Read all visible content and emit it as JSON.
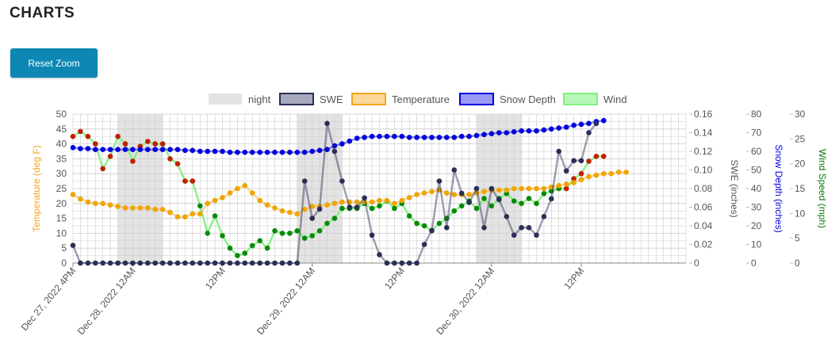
{
  "page": {
    "title": "CHARTS"
  },
  "toolbar": {
    "reset_zoom_label": "Reset Zoom"
  },
  "colors": {
    "night": "#e3e3e3",
    "swe": "#2a2f55",
    "temperature": "#f5a623",
    "temperature_marker": "#f0a500",
    "snow_depth": "#0000dd",
    "wind": "#7ef07e",
    "wind_marker": "#0a8a0a",
    "wind_gust_marker": "#c02000",
    "grid": "#cccccc",
    "axis_text": "#555555"
  },
  "chart_data": {
    "type": "line",
    "legend": {
      "placement": "top-center",
      "items": [
        "night",
        "SWE",
        "Temperature",
        "Snow Depth",
        "Wind"
      ]
    },
    "x_axis": {
      "label": "",
      "range_hours": [
        0,
        82
      ],
      "ticks": [
        {
          "hour": 0,
          "label": "Dec 27, 2022 4PM"
        },
        {
          "hour": 8,
          "label": "Dec 28, 2022 12AM"
        },
        {
          "hour": 20,
          "label": "12PM"
        },
        {
          "hour": 32,
          "label": "Dec 29, 2022 12AM"
        },
        {
          "hour": 44,
          "label": "12PM"
        },
        {
          "hour": 56,
          "label": "Dec 30, 2022 12AM"
        },
        {
          "hour": 68,
          "label": "12PM"
        }
      ]
    },
    "axes": {
      "temperature": {
        "label": "Temperature (deg F)",
        "min": 0,
        "max": 50,
        "ticks": [
          0,
          5,
          10,
          15,
          20,
          25,
          30,
          35,
          40,
          45,
          50
        ]
      },
      "swe": {
        "label": "SWE (inches)",
        "min": 0,
        "max": 0.16,
        "ticks": [
          "0",
          "0.02",
          "0.04",
          "0.06",
          "0.08",
          "0.10",
          "0.12",
          "0.14",
          "0.16"
        ]
      },
      "snow_depth": {
        "label": "Snow Depth (inches)",
        "min": 0,
        "max": 80,
        "ticks": [
          0,
          10,
          20,
          30,
          40,
          50,
          60,
          70,
          80
        ]
      },
      "wind": {
        "label": "Wind Speed (mph)",
        "min": 0,
        "max": 30,
        "ticks": [
          0,
          5,
          10,
          15,
          20,
          25,
          30
        ]
      }
    },
    "night_periods_hours": [
      [
        6,
        12
      ],
      [
        30,
        36
      ],
      [
        54,
        60
      ]
    ],
    "series": [
      {
        "name": "Temperature",
        "axis": "temperature",
        "start_hour": 0,
        "step_hours": 1,
        "values": [
          23,
          21.5,
          20.5,
          20,
          20,
          19.5,
          19,
          18.5,
          18.5,
          18.5,
          18.5,
          18,
          18,
          17,
          15.5,
          15.5,
          16.5,
          16.5,
          20,
          21,
          22,
          23.5,
          25,
          26,
          23.5,
          21,
          19.5,
          18.5,
          17.5,
          17,
          16.5,
          18,
          19,
          19,
          19.5,
          20,
          20.5,
          20.5,
          20.5,
          20.5,
          20.5,
          21,
          21,
          20,
          21,
          22,
          23,
          23.5,
          24,
          24.5,
          23.5,
          23,
          23,
          23,
          23.5,
          24,
          24.5,
          24.5,
          24.5,
          25,
          25,
          25,
          25,
          25,
          25.5,
          26,
          26.5,
          27,
          28,
          29,
          29.5,
          30,
          30,
          30.5,
          30.5
        ]
      },
      {
        "name": "SWE",
        "axis": "swe",
        "start_hour": 0,
        "step_hours": 1,
        "values": [
          0.019,
          0,
          0,
          0,
          0,
          0,
          0,
          0,
          0,
          0,
          0,
          0,
          0,
          0,
          0,
          0,
          0,
          0,
          0,
          0,
          0,
          0,
          0,
          0,
          0,
          0,
          0,
          0,
          0,
          0,
          0,
          0.088,
          0.048,
          0.058,
          0.15,
          0.12,
          0.088,
          0.06,
          0.06,
          0.07,
          0.03,
          0.009,
          0,
          0,
          0,
          0,
          0,
          0.02,
          0.035,
          0.088,
          0.038,
          0.1,
          0.075,
          0.065,
          0.08,
          0.038,
          0.08,
          0.068,
          0.05,
          0.03,
          0.038,
          0.038,
          0.03,
          0.05,
          0.069,
          0.12,
          0.099,
          0.11,
          0.11,
          0.14,
          0.15
        ]
      },
      {
        "name": "Snow Depth",
        "axis": "snow_depth",
        "start_hour": 0,
        "step_hours": 1,
        "values": [
          62,
          61.5,
          61.5,
          61,
          61,
          61,
          61,
          61,
          61,
          61,
          61,
          61,
          61,
          61,
          61,
          60.5,
          60.5,
          60,
          60,
          60,
          60,
          59.5,
          59.5,
          59.5,
          59.5,
          59.5,
          59.5,
          59.5,
          59.5,
          59.5,
          59.5,
          59.5,
          60,
          60.5,
          61,
          63,
          64,
          65.5,
          67,
          67.5,
          68,
          68,
          68,
          68,
          68,
          67.5,
          67.5,
          67.5,
          67.5,
          67.5,
          67.5,
          67.5,
          68,
          68,
          68.5,
          69,
          69.5,
          70,
          70,
          70.5,
          71,
          71,
          71,
          71.5,
          72,
          72.5,
          73,
          74,
          74.5,
          75,
          76,
          76.5
        ]
      },
      {
        "name": "Wind",
        "axis": "wind",
        "start_hour": 0,
        "step_hours": 1,
        "values": [
          25.5,
          26.5,
          25.5,
          24,
          19,
          21.5,
          25.5,
          24,
          20.5,
          23.5,
          24.5,
          24,
          24,
          21,
          20,
          16.5,
          16.5,
          11.5,
          6,
          9.5,
          5.5,
          3,
          1.5,
          2,
          3.5,
          4.5,
          3,
          6.5,
          6,
          6,
          6.5,
          5,
          5.5,
          6.5,
          8,
          9,
          11,
          11,
          11,
          12,
          11,
          11.5,
          12.5,
          11,
          12,
          9.5,
          8,
          7.5,
          6.5,
          8,
          9,
          10.5,
          11.5,
          12.5,
          11,
          13,
          11.5,
          13,
          14,
          12.5,
          12,
          13,
          12,
          14,
          14.5,
          15,
          15,
          17,
          18,
          20.5,
          21.5,
          21.5
        ],
        "gust_flagged_points": [
          0,
          1,
          2,
          3,
          4,
          5,
          6,
          7,
          8,
          9,
          10,
          11,
          12,
          13,
          14,
          15,
          16,
          66,
          67,
          68,
          69,
          70,
          71
        ]
      }
    ]
  }
}
